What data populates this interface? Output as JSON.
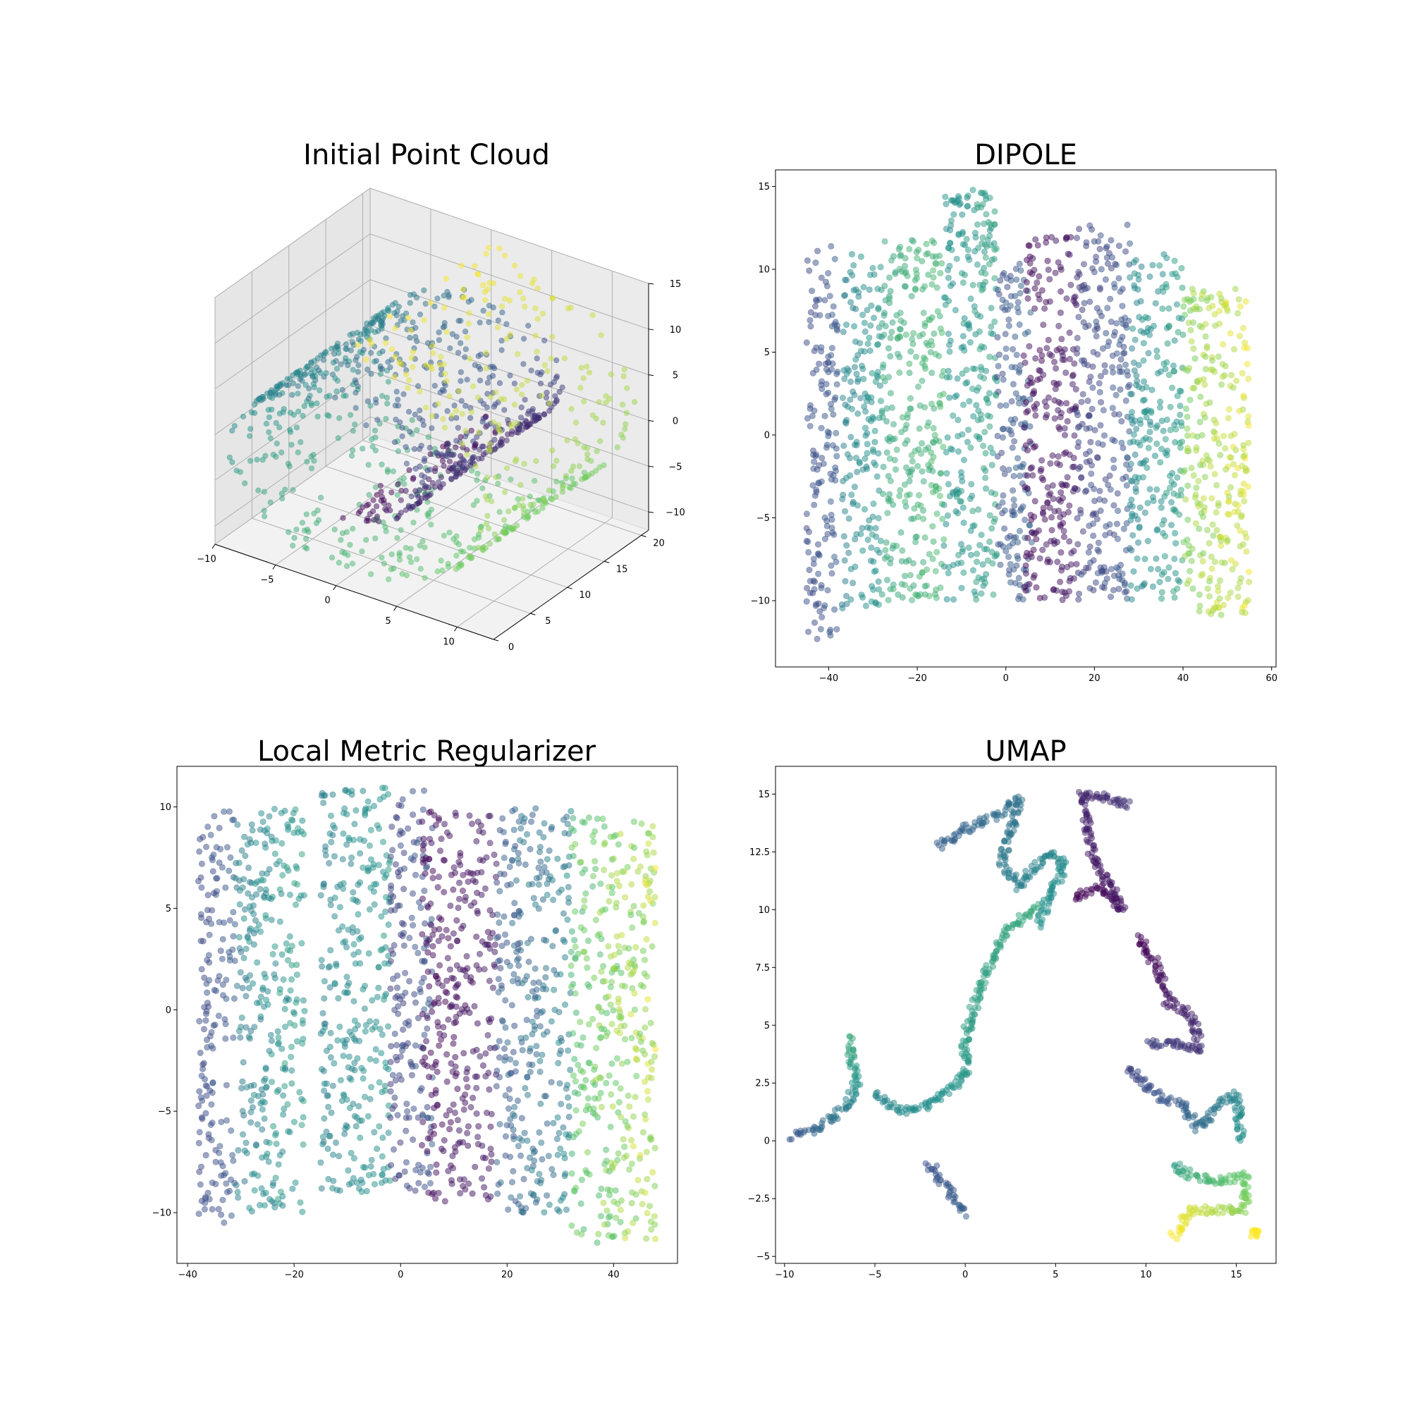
{
  "colormap": [
    "#440154",
    "#3b528b",
    "#21918c",
    "#5ec962",
    "#fde725"
  ],
  "chart_data": [
    {
      "type": "scatter",
      "projection": "3d",
      "title": "Initial Point Cloud",
      "description_shape": "swiss roll",
      "xlim": [
        -10,
        13
      ],
      "ylim": [
        0,
        21
      ],
      "zlim": [
        -12,
        15
      ],
      "xticks": [
        -10,
        -5,
        0,
        5,
        10
      ],
      "yticks": [
        0,
        5,
        10,
        15,
        20
      ],
      "zticks": [
        -10,
        -5,
        0,
        5,
        10,
        15
      ],
      "point_count": 2000,
      "color_scale": "viridis",
      "alpha": 0.5
    },
    {
      "type": "scatter",
      "title": "DIPOLE",
      "xlim": [
        -52,
        61
      ],
      "ylim": [
        -14,
        16
      ],
      "xticks": [
        -40,
        -20,
        0,
        20,
        40,
        60
      ],
      "yticks": [
        -10,
        -5,
        0,
        5,
        10,
        15
      ],
      "regions": [
        {
          "x": [
            -45,
            -38
          ],
          "y": [
            -12.5,
            11.5
          ],
          "color_t": [
            0.2,
            0.3
          ]
        },
        {
          "x": [
            -37,
            -28
          ],
          "y": [
            -10.5,
            11
          ],
          "color_t": [
            0.4,
            0.55
          ]
        },
        {
          "x": [
            -28,
            -14
          ],
          "y": [
            -10,
            12
          ],
          "color_t": [
            0.55,
            0.7
          ]
        },
        {
          "x": [
            -14,
            -2
          ],
          "y": [
            -10,
            15
          ],
          "color_t": [
            0.45,
            0.6
          ]
        },
        {
          "x": [
            -2,
            6
          ],
          "y": [
            -10,
            10.5
          ],
          "color_t": [
            0.2,
            0.35
          ]
        },
        {
          "x": [
            4,
            16
          ],
          "y": [
            -10,
            12
          ],
          "color_t": [
            0.0,
            0.1
          ]
        },
        {
          "x": [
            16,
            28
          ],
          "y": [
            -10,
            13
          ],
          "color_t": [
            0.15,
            0.3
          ]
        },
        {
          "x": [
            28,
            40
          ],
          "y": [
            -10,
            11
          ],
          "color_t": [
            0.4,
            0.6
          ]
        },
        {
          "x": [
            40,
            55
          ],
          "y": [
            -11,
            9
          ],
          "color_t": [
            0.75,
            1.0
          ]
        }
      ],
      "color_scale": "viridis",
      "alpha": 0.5
    },
    {
      "type": "scatter",
      "title": "Local Metric Regularizer",
      "xlim": [
        -42,
        52
      ],
      "ylim": [
        -12.5,
        12
      ],
      "xticks": [
        -40,
        -20,
        0,
        20,
        40
      ],
      "yticks": [
        -10,
        -5,
        0,
        5,
        10
      ],
      "regions": [
        {
          "x": [
            -38,
            -31
          ],
          "y": [
            -10.5,
            10
          ],
          "color_t": [
            0.2,
            0.3
          ]
        },
        {
          "x": [
            -31,
            -18
          ],
          "y": [
            -10,
            10
          ],
          "color_t": [
            0.35,
            0.6
          ]
        },
        {
          "x": [
            -15,
            -2
          ],
          "y": [
            -9,
            11
          ],
          "color_t": [
            0.4,
            0.55
          ]
        },
        {
          "x": [
            -2,
            6
          ],
          "y": [
            -9,
            11
          ],
          "color_t": [
            0.15,
            0.3
          ]
        },
        {
          "x": [
            4,
            18
          ],
          "y": [
            -9.5,
            10
          ],
          "color_t": [
            0.0,
            0.1
          ]
        },
        {
          "x": [
            18,
            32
          ],
          "y": [
            -10,
            10
          ],
          "color_t": [
            0.2,
            0.5
          ]
        },
        {
          "x": [
            32,
            48
          ],
          "y": [
            -11.5,
            9.5
          ],
          "color_t": [
            0.6,
            1.0
          ]
        }
      ],
      "color_scale": "viridis",
      "alpha": 0.5
    },
    {
      "type": "scatter",
      "title": "UMAP",
      "xlim": [
        -10.5,
        17.2
      ],
      "ylim": [
        -5.3,
        16.2
      ],
      "xticks": [
        -10,
        -5,
        0,
        5,
        10,
        15
      ],
      "yticks": [
        -5.0,
        -2.5,
        0.0,
        2.5,
        5.0,
        7.5,
        10.0,
        12.5,
        15.0
      ],
      "paths": [
        {
          "points": [
            [
              -9.5,
              0.2
            ],
            [
              -8,
              0.6
            ],
            [
              -6.5,
              1.5
            ],
            [
              -6,
              2.6
            ],
            [
              -6.5,
              4.5
            ]
          ],
          "color_t": [
            0.25,
            0.6
          ]
        },
        {
          "points": [
            [
              -5,
              2
            ],
            [
              -3.5,
              1.3
            ],
            [
              -2,
              1.5
            ],
            [
              -1,
              2.2
            ],
            [
              0,
              2.8
            ],
            [
              0,
              4.5
            ],
            [
              1,
              7
            ],
            [
              2.2,
              9
            ],
            [
              4,
              10.2
            ]
          ],
          "color_t": [
            0.45,
            0.6
          ]
        },
        {
          "points": [
            [
              -2,
              -1
            ],
            [
              -1,
              -2
            ],
            [
              0,
              -3.2
            ]
          ],
          "color_t": [
            0.25,
            0.3
          ]
        },
        {
          "points": [
            [
              -1.5,
              12.7
            ],
            [
              0,
              13.5
            ],
            [
              1.5,
              14
            ],
            [
              3,
              14.8
            ],
            [
              2,
              12
            ],
            [
              3,
              11
            ],
            [
              4.5,
              12.5
            ],
            [
              5.5,
              12
            ],
            [
              4,
              9.3
            ]
          ],
          "color_t": [
            0.3,
            0.5
          ]
        },
        {
          "points": [
            [
              6,
              10.5
            ],
            [
              7.5,
              11
            ],
            [
              8.7,
              10
            ],
            [
              7,
              12.5
            ],
            [
              6.5,
              15
            ],
            [
              8,
              14.8
            ],
            [
              9.2,
              14.5
            ]
          ],
          "color_t": [
            0.0,
            0.15
          ]
        },
        {
          "points": [
            [
              9.5,
              8.8
            ],
            [
              10.7,
              7.5
            ],
            [
              11.2,
              6
            ],
            [
              12.5,
              5.5
            ],
            [
              13,
              4
            ],
            [
              11.5,
              4.2
            ],
            [
              10,
              4.2
            ]
          ],
          "color_t": [
            0.0,
            0.2
          ]
        },
        {
          "points": [
            [
              9,
              3.2
            ],
            [
              10.5,
              2
            ],
            [
              12,
              1.5
            ],
            [
              13,
              0.5
            ],
            [
              14,
              1.5
            ],
            [
              15,
              2
            ],
            [
              15.3,
              0
            ]
          ],
          "color_t": [
            0.2,
            0.5
          ]
        },
        {
          "points": [
            [
              11.5,
              -1
            ],
            [
              12.5,
              -1.5
            ],
            [
              14,
              -1.8
            ],
            [
              15.5,
              -1.5
            ],
            [
              15.5,
              -3
            ],
            [
              14,
              -3
            ],
            [
              12.5,
              -3
            ],
            [
              11.5,
              -4.2
            ]
          ],
          "color_t": [
            0.55,
            1.0
          ]
        },
        {
          "points": [
            [
              16,
              -4
            ]
          ],
          "color_t": [
            1.0,
            1.0
          ]
        }
      ],
      "color_scale": "viridis",
      "alpha": 0.5
    }
  ]
}
